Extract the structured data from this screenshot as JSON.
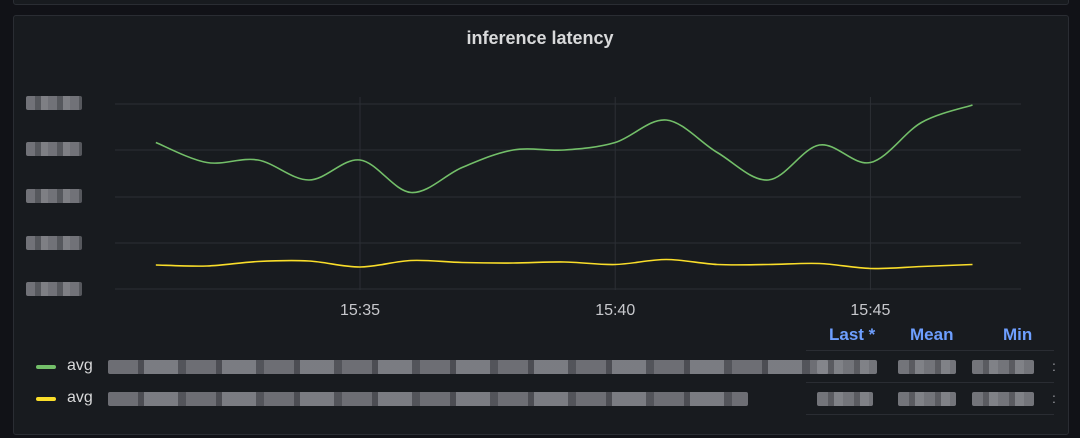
{
  "panel": {
    "title": "inference latency"
  },
  "colors": {
    "background": "#111217",
    "panel_bg": "#181b1f",
    "grid": "#2c2f35",
    "series_green": "#73bf69",
    "series_yellow": "#fade2a",
    "legend_header": "#6e9fff"
  },
  "chart_data": {
    "type": "line",
    "title": "inference latency",
    "xlabel": "",
    "ylabel": "",
    "x_ticks": [
      "15:35",
      "15:40",
      "15:45"
    ],
    "x_range": [
      "15:31",
      "15:47"
    ],
    "ylim": [
      0,
      4
    ],
    "grid": true,
    "y_tick_labels_visible": false,
    "series": [
      {
        "name": "avg",
        "color": "#73bf69",
        "x": [
          "15:31",
          "15:32",
          "15:33",
          "15:34",
          "15:35",
          "15:36",
          "15:37",
          "15:38",
          "15:39",
          "15:40",
          "15:41",
          "15:42",
          "15:43",
          "15:44",
          "15:45",
          "15:46",
          "15:47"
        ],
        "y": [
          2.95,
          2.55,
          2.6,
          2.2,
          2.6,
          1.95,
          2.45,
          2.8,
          2.8,
          2.95,
          3.4,
          2.75,
          2.2,
          2.9,
          2.55,
          3.35,
          3.7
        ]
      },
      {
        "name": "avg",
        "color": "#fade2a",
        "x": [
          "15:31",
          "15:32",
          "15:33",
          "15:34",
          "15:35",
          "15:36",
          "15:37",
          "15:38",
          "15:39",
          "15:40",
          "15:41",
          "15:42",
          "15:43",
          "15:44",
          "15:45",
          "15:46",
          "15:47"
        ],
        "y": [
          0.5,
          0.48,
          0.57,
          0.58,
          0.46,
          0.59,
          0.55,
          0.54,
          0.56,
          0.51,
          0.61,
          0.51,
          0.51,
          0.53,
          0.43,
          0.47,
          0.51
        ]
      }
    ]
  },
  "legend": {
    "headers": [
      "Last *",
      "Mean",
      "Min"
    ],
    "rows": [
      {
        "swatch_color": "#73bf69",
        "label": "avg"
      },
      {
        "swatch_color": "#fade2a",
        "label": "avg"
      }
    ],
    "more_glyph": ":"
  }
}
